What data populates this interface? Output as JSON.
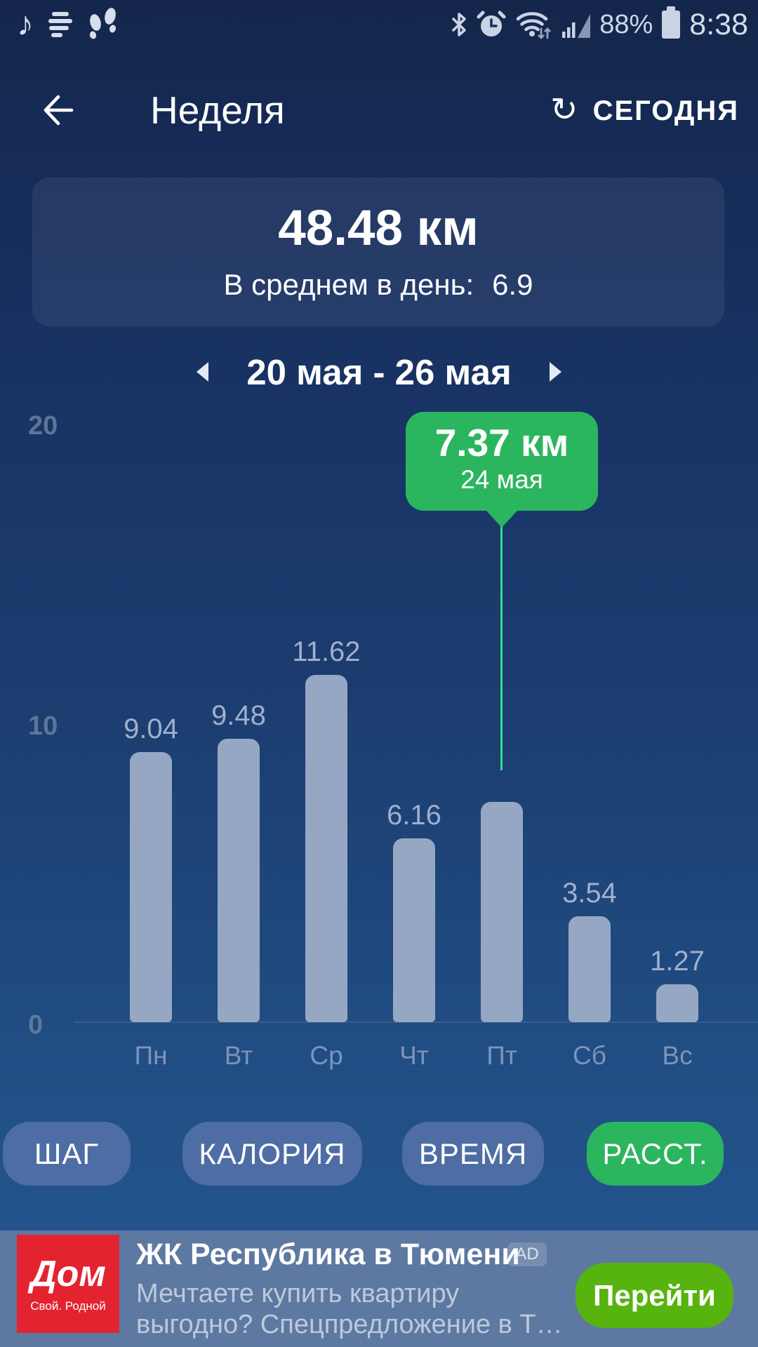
{
  "colors": {
    "tooltip_green": "#2cb55f",
    "selection_line": "#2fe08c",
    "bar": "#96a7c4",
    "ad_button_green": "#57b30e",
    "ad_logo_red": "#e32330",
    "banner_bg": "#5d79a2"
  },
  "status_bar": {
    "time": "8:38",
    "battery": "88%",
    "left_icons": [
      "music-note",
      "layers",
      "footprints"
    ],
    "right_icons": [
      "bluetooth",
      "alarm-clock",
      "wifi",
      "signal",
      "battery"
    ]
  },
  "header": {
    "title": "Неделя",
    "today": "СЕГОДНЯ"
  },
  "summary": {
    "total": "48.48 км",
    "avg_label": "В среднем в день:",
    "avg_value": "6.9"
  },
  "date_nav": {
    "range": "20 мая - 26 мая"
  },
  "chart_data": {
    "type": "bar",
    "title": "",
    "categories": [
      "Пн",
      "Вт",
      "Ср",
      "Чт",
      "Пт",
      "Сб",
      "Вс"
    ],
    "values": [
      9.04,
      9.48,
      11.62,
      6.16,
      7.37,
      3.54,
      1.27
    ],
    "value_labels": [
      "9.04",
      "9.48",
      "11.62",
      "6.16",
      "",
      "3.54",
      "1.27"
    ],
    "unit": "км",
    "ylim": [
      0,
      20
    ],
    "yticks": [
      "20",
      "10",
      "0"
    ],
    "grid": false,
    "legend": false,
    "selected_index": 4,
    "tooltip": {
      "value": "7.37 км",
      "date": "24 мая"
    }
  },
  "tabs": [
    {
      "label": "ШАГ",
      "active": false
    },
    {
      "label": "КАЛОРИЯ",
      "active": false
    },
    {
      "label": "ВРЕМЯ",
      "active": false
    },
    {
      "label": "РАССТ.",
      "active": true
    }
  ],
  "ad": {
    "logo_title": "Дом",
    "logo_subtitle": "Свой. Родной",
    "title": "ЖК Республика в Тюмени",
    "badge": "AD",
    "description_line1": "Мечтаете купить квартиру",
    "description_line2": "выгодно? Спецпредложение в Т…",
    "button": "Перейти"
  }
}
